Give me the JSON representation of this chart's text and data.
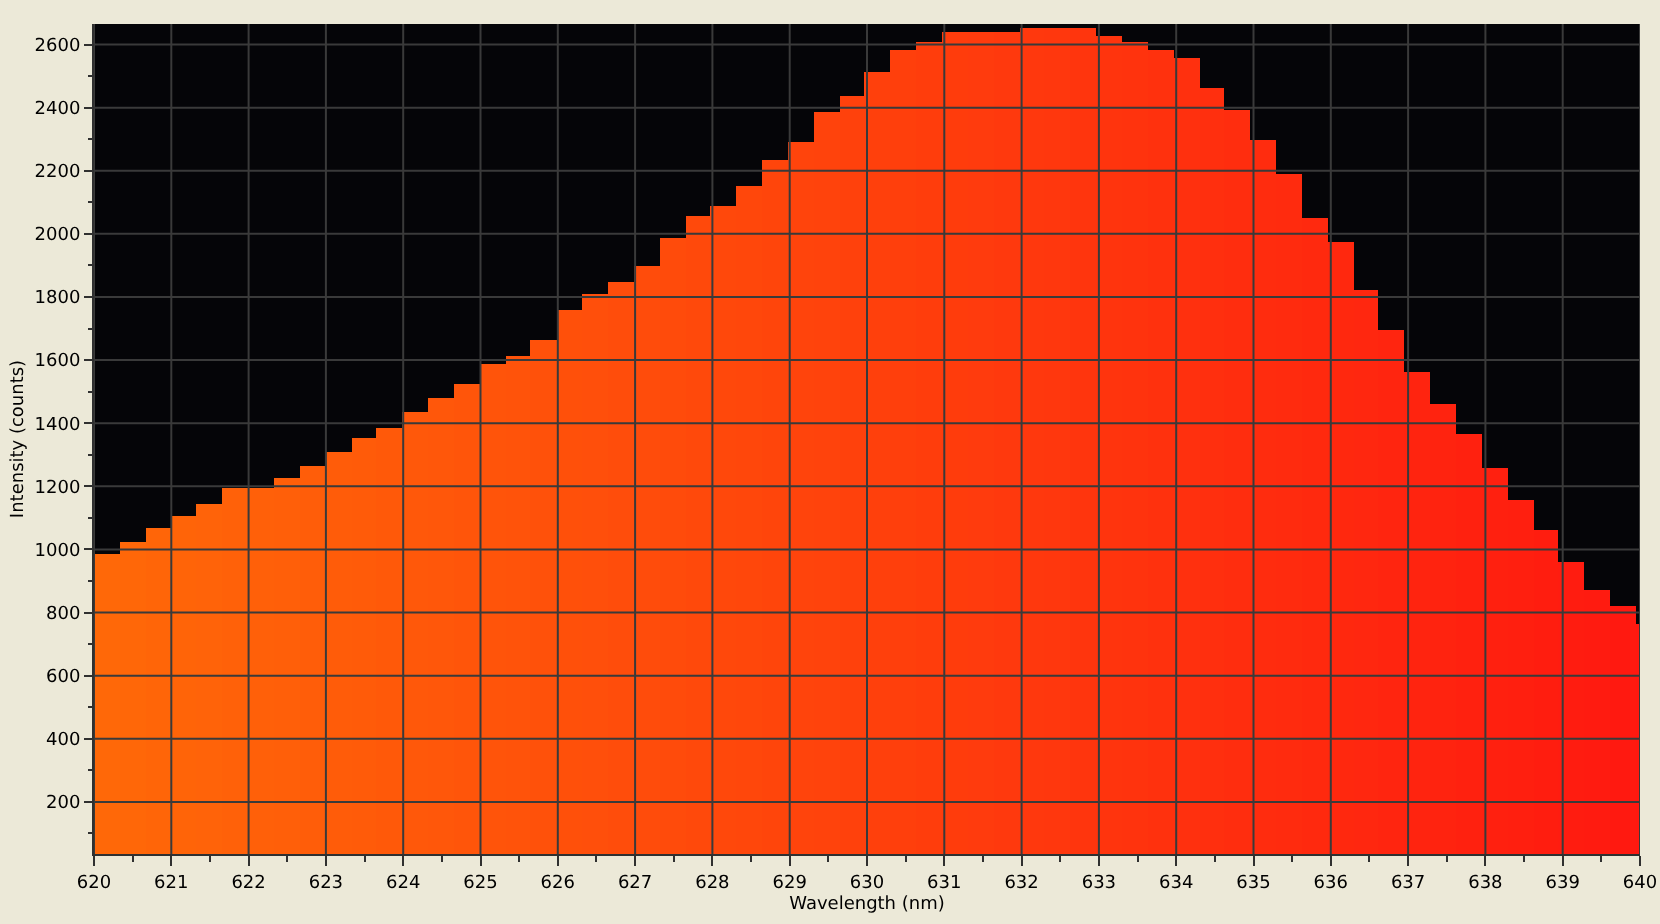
{
  "chart_data": {
    "type": "histogram",
    "xlabel": "Wavelength (nm)",
    "ylabel": "Intensity (counts)",
    "bins": [
      620.0,
      620.33,
      620.67,
      621.0,
      621.33,
      621.66,
      621.99,
      622.33,
      622.66,
      622.99,
      623.33,
      623.66,
      623.99,
      624.32,
      624.66,
      624.99,
      625.32,
      625.65,
      625.99,
      626.32,
      626.65,
      626.98,
      627.32,
      627.65,
      627.98,
      628.31,
      628.64,
      628.98,
      629.31,
      629.64,
      629.97,
      630.31,
      630.64,
      630.97,
      631.3,
      631.64,
      631.97,
      632.3,
      632.63,
      632.97,
      633.3,
      633.63,
      633.96,
      634.3,
      634.63,
      634.96,
      635.29,
      635.63,
      635.96,
      636.29,
      636.62,
      636.95,
      637.29,
      637.62,
      637.95,
      638.28,
      638.62,
      638.95,
      639.28,
      639.61,
      639.95,
      640.0
    ],
    "values": [
      985,
      1025,
      1070,
      1105,
      1145,
      1195,
      1195,
      1225,
      1265,
      1310,
      1355,
      1385,
      1435,
      1480,
      1525,
      1590,
      1615,
      1665,
      1760,
      1810,
      1845,
      1900,
      1985,
      2055,
      2090,
      2150,
      2235,
      2290,
      2385,
      2440,
      2515,
      2585,
      2610,
      2640,
      2640,
      2640,
      2650,
      2650,
      2650,
      2625,
      2610,
      2580,
      2555,
      2465,
      2395,
      2300,
      2190,
      2050,
      1975,
      1825,
      1695,
      1565,
      1460,
      1365,
      1260,
      1155,
      1060,
      960,
      870,
      820,
      765
    ],
    "colors": [
      "#ff6808",
      "#ff6708",
      "#ff6508",
      "#ff6408",
      "#ff6309",
      "#ff6109",
      "#ff6009",
      "#ff5f09",
      "#ff5d09",
      "#ff5c09",
      "#ff5b09",
      "#ff5909",
      "#ff580a",
      "#ff570a",
      "#ff550a",
      "#ff540a",
      "#ff530a",
      "#ff510a",
      "#ff500a",
      "#ff4f0b",
      "#ff4d0b",
      "#ff4c0b",
      "#ff4b0b",
      "#ff490b",
      "#ff480b",
      "#ff470b",
      "#ff450b",
      "#ff440c",
      "#ff430c",
      "#ff410c",
      "#ff400c",
      "#ff3f0c",
      "#ff3d0c",
      "#ff3c0c",
      "#ff3b0d",
      "#ff390d",
      "#ff380d",
      "#ff370d",
      "#ff350d",
      "#ff340d",
      "#ff330d",
      "#ff310d",
      "#ff300e",
      "#ff2f0e",
      "#ff2d0e",
      "#ff2c0e",
      "#ff2b0e",
      "#ff290e",
      "#ff280e",
      "#ff270f",
      "#ff250f",
      "#ff240f",
      "#ff230f",
      "#ff210f",
      "#ff200f",
      "#ff1f0f",
      "#ff1d0f",
      "#ff1c10",
      "#ff1b10",
      "#ff1910",
      "#ff1810"
    ],
    "xlim": [
      620,
      640
    ],
    "ylim": [
      35,
      2665
    ],
    "xticks": [
      620,
      621,
      622,
      623,
      624,
      625,
      626,
      627,
      628,
      629,
      630,
      631,
      632,
      633,
      634,
      635,
      636,
      637,
      638,
      639,
      640
    ],
    "yticks": [
      200,
      400,
      600,
      800,
      1000,
      1200,
      1400,
      1600,
      1800,
      2000,
      2200,
      2400,
      2600
    ],
    "grid": true
  }
}
